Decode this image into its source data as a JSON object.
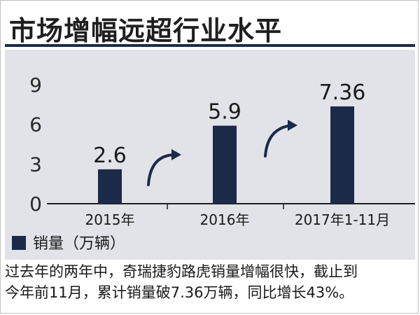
{
  "title": "市场增幅远超行业水平",
  "caption": {
    "line1": "过去年的两年中，奇瑞捷豹路虎销量增幅很快，截止到",
    "line2": "今年前11月，累计销量破7.36万辆，同比增长43%。"
  },
  "colors": {
    "bar": "#1c2a4a",
    "panel": "#e2e3e8",
    "arrow": "#1c2a4a"
  },
  "chart_data": {
    "type": "bar",
    "categories": [
      "2015年",
      "2016年",
      "2017年1-11月"
    ],
    "series": [
      {
        "name": "销量（万辆）",
        "values": [
          2.6,
          5.9,
          7.36
        ]
      }
    ],
    "data_labels": [
      "2.6",
      "5.9",
      "7.36"
    ],
    "yticks": [
      "0",
      "3",
      "6",
      "9"
    ],
    "ylim": [
      0,
      9
    ],
    "legend_position": "bottom-left",
    "grid": false,
    "annotations": [
      "growth-arrow",
      "growth-arrow"
    ]
  }
}
